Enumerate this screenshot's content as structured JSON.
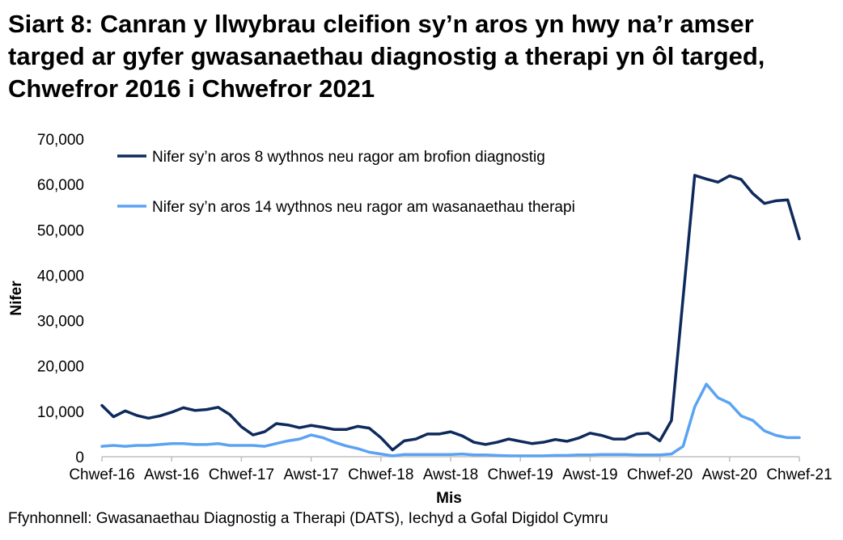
{
  "title": "Siart 8: Canran y llwybrau cleifion sy’n aros yn hwy na’r amser targed ar gyfer gwasanaethau diagnostig a therapi yn ôl targed, Chwefror 2016 i Chwefror 2021",
  "source": "Ffynhonnell: Gwasanaethau Diagnostig a Therapi (DATS), Iechyd a Gofal Digidol Cymru",
  "colors": {
    "diagnostig": "#0e2a5c",
    "therapi": "#5ba3f2",
    "axis": "#bfbfbf"
  },
  "chart_data": {
    "type": "line",
    "xlabel": "Mis",
    "ylabel": "Nifer",
    "ylim": [
      0,
      70000
    ],
    "yticks": [
      0,
      10000,
      20000,
      30000,
      40000,
      50000,
      60000,
      70000
    ],
    "ytick_labels": [
      "0",
      "10,000",
      "20,000",
      "30,000",
      "40,000",
      "50,000",
      "60,000",
      "70,000"
    ],
    "xtick_labels": [
      "Chwef-16",
      "Awst-16",
      "Chwef-17",
      "Awst-17",
      "Chwef-18",
      "Awst-18",
      "Chwef-19",
      "Awst-19",
      "Chwef-20",
      "Awst-20",
      "Chwef-21"
    ],
    "xtick_every": 6,
    "grid": false,
    "legend": "top-left",
    "series": [
      {
        "name": "Nifer sy’n aros 8 wythnos neu ragor am brofion diagnostig",
        "color_key": "diagnostig",
        "values": [
          11300,
          8800,
          10100,
          9100,
          8500,
          9000,
          9800,
          10800,
          10200,
          10400,
          10900,
          9300,
          6600,
          4800,
          5500,
          7300,
          7000,
          6400,
          6900,
          6500,
          6000,
          6000,
          6700,
          6300,
          4200,
          1500,
          3500,
          3900,
          5000,
          5000,
          5500,
          4600,
          3200,
          2700,
          3200,
          3900,
          3400,
          2900,
          3200,
          3800,
          3400,
          4100,
          5200,
          4700,
          3900,
          3900,
          5000,
          5200,
          3500,
          8000,
          35000,
          62000,
          61200,
          60500,
          61900,
          61100,
          58000,
          55800,
          56400,
          56600,
          48000
        ]
      },
      {
        "name": "Nifer sy’n aros 14 wythnos neu ragor am wasanaethau therapi",
        "color_key": "therapi",
        "values": [
          2300,
          2500,
          2300,
          2500,
          2500,
          2700,
          2900,
          2900,
          2700,
          2700,
          2900,
          2500,
          2500,
          2500,
          2300,
          2900,
          3500,
          3900,
          4800,
          4200,
          3200,
          2400,
          1800,
          1000,
          600,
          200,
          500,
          500,
          500,
          500,
          500,
          600,
          400,
          400,
          300,
          200,
          200,
          200,
          200,
          300,
          300,
          400,
          400,
          500,
          500,
          500,
          400,
          400,
          400,
          600,
          2300,
          11000,
          16000,
          13000,
          11800,
          9000,
          8000,
          5700,
          4700,
          4200,
          4200
        ]
      }
    ]
  }
}
